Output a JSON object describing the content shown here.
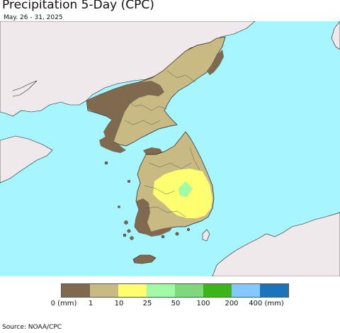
{
  "title": "Precipitation 5-Day (CPC)",
  "subtitle": "May. 26 - 31, 2025",
  "source": "Source: NOAA/CPC",
  "colors": {
    "sea": "#a6f5ff",
    "land_outside": "#efe9ec",
    "border": "#222222",
    "cat_0_1": "#806a4f",
    "cat_1_10": "#c9b983",
    "cat_10_25": "#fffd70",
    "cat_25_50": "#a0fba4"
  },
  "legend": {
    "colors": [
      "#806a4f",
      "#c9b983",
      "#fffd70",
      "#a0fba4",
      "#7dd97a",
      "#3db31c",
      "#83c8ff",
      "#1c73b8"
    ],
    "tick_labels": [
      "0 (mm)",
      "1",
      "10",
      "25",
      "50",
      "100",
      "200",
      "400 (mm)"
    ]
  }
}
